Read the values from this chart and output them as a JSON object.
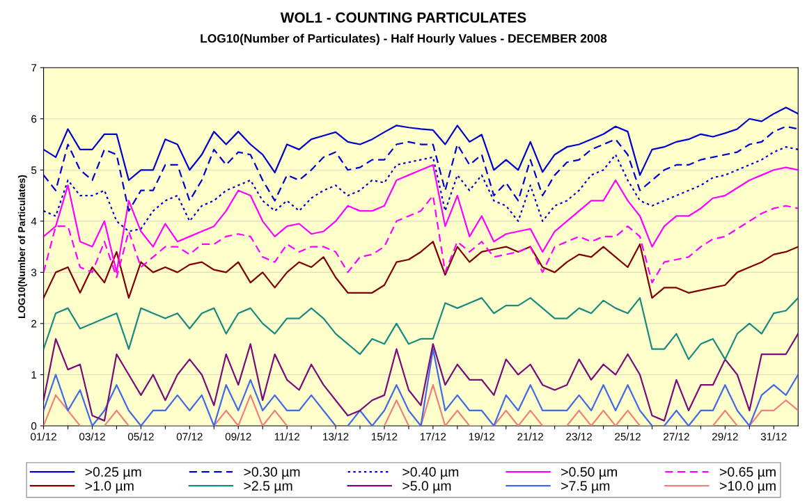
{
  "chart_data": {
    "type": "line",
    "title": "WOL1 - COUNTING PARTICULATES",
    "subtitle": "LOG10(Number of Particulates) - Half Hourly Values - DECEMBER 2008",
    "ylabel": "LOG10(Number of Particulates)",
    "x": [
      "2008-12-01T00:00",
      "2008-12-01T12:00",
      "2008-12-02T00:00",
      "2008-12-02T12:00",
      "2008-12-03T00:00",
      "2008-12-03T12:00",
      "2008-12-04T00:00",
      "2008-12-04T12:00",
      "2008-12-05T00:00",
      "2008-12-05T12:00",
      "2008-12-06T00:00",
      "2008-12-06T12:00",
      "2008-12-07T00:00",
      "2008-12-07T12:00",
      "2008-12-08T00:00",
      "2008-12-08T12:00",
      "2008-12-09T00:00",
      "2008-12-09T12:00",
      "2008-12-10T00:00",
      "2008-12-10T12:00",
      "2008-12-11T00:00",
      "2008-12-11T12:00",
      "2008-12-12T00:00",
      "2008-12-12T12:00",
      "2008-12-13T00:00",
      "2008-12-13T12:00",
      "2008-12-14T00:00",
      "2008-12-14T12:00",
      "2008-12-15T00:00",
      "2008-12-15T12:00",
      "2008-12-16T00:00",
      "2008-12-16T12:00",
      "2008-12-17T00:00",
      "2008-12-17T12:00",
      "2008-12-18T00:00",
      "2008-12-18T12:00",
      "2008-12-19T00:00",
      "2008-12-19T12:00",
      "2008-12-20T00:00",
      "2008-12-20T12:00",
      "2008-12-21T00:00",
      "2008-12-21T12:00",
      "2008-12-22T00:00",
      "2008-12-22T12:00",
      "2008-12-23T00:00",
      "2008-12-23T12:00",
      "2008-12-24T00:00",
      "2008-12-24T12:00",
      "2008-12-25T00:00",
      "2008-12-25T12:00",
      "2008-12-26T00:00",
      "2008-12-26T12:00",
      "2008-12-27T00:00",
      "2008-12-27T12:00",
      "2008-12-28T00:00",
      "2008-12-28T12:00",
      "2008-12-29T00:00",
      "2008-12-29T12:00",
      "2008-12-30T00:00",
      "2008-12-30T12:00",
      "2008-12-31T00:00",
      "2008-12-31T12:00",
      "2009-01-01T00:00"
    ],
    "xlim": [
      "2008-12-01",
      "2009-01-01"
    ],
    "xticks": [
      {
        "value": "2008-12-01",
        "label": "01/12"
      },
      {
        "value": "2008-12-02",
        "label": null
      },
      {
        "value": "2008-12-03",
        "label": "03/12"
      },
      {
        "value": "2008-12-04",
        "label": null
      },
      {
        "value": "2008-12-05",
        "label": "05/12"
      },
      {
        "value": "2008-12-06",
        "label": null
      },
      {
        "value": "2008-12-07",
        "label": "07/12"
      },
      {
        "value": "2008-12-08",
        "label": null
      },
      {
        "value": "2008-12-09",
        "label": "09/12"
      },
      {
        "value": "2008-12-10",
        "label": null
      },
      {
        "value": "2008-12-11",
        "label": "11/12"
      },
      {
        "value": "2008-12-12",
        "label": null
      },
      {
        "value": "2008-12-13",
        "label": "13/12"
      },
      {
        "value": "2008-12-14",
        "label": null
      },
      {
        "value": "2008-12-15",
        "label": "15/12"
      },
      {
        "value": "2008-12-16",
        "label": null
      },
      {
        "value": "2008-12-17",
        "label": "17/12"
      },
      {
        "value": "2008-12-18",
        "label": null
      },
      {
        "value": "2008-12-19",
        "label": "19/12"
      },
      {
        "value": "2008-12-20",
        "label": null
      },
      {
        "value": "2008-12-21",
        "label": "21/12"
      },
      {
        "value": "2008-12-22",
        "label": null
      },
      {
        "value": "2008-12-23",
        "label": "23/12"
      },
      {
        "value": "2008-12-24",
        "label": null
      },
      {
        "value": "2008-12-25",
        "label": "25/12"
      },
      {
        "value": "2008-12-26",
        "label": null
      },
      {
        "value": "2008-12-27",
        "label": "27/12"
      },
      {
        "value": "2008-12-28",
        "label": null
      },
      {
        "value": "2008-12-29",
        "label": "29/12"
      },
      {
        "value": "2008-12-30",
        "label": null
      },
      {
        "value": "2008-12-31",
        "label": "31/12"
      }
    ],
    "ylim": [
      0,
      7
    ],
    "yticks": [
      0,
      1,
      2,
      3,
      4,
      5,
      6,
      7
    ],
    "grid": "y",
    "legend": "bottom",
    "marker": "none",
    "series": [
      {
        "name": ">0.25 µm",
        "color": "#0000d0",
        "line_style": "solid",
        "values": [
          5.4,
          5.25,
          5.8,
          5.4,
          5.4,
          5.7,
          5.7,
          4.8,
          5.0,
          5.0,
          5.6,
          5.5,
          5.0,
          5.3,
          5.75,
          5.5,
          5.75,
          5.5,
          5.3,
          4.95,
          5.5,
          5.4,
          5.6,
          5.67,
          5.74,
          5.55,
          5.5,
          5.6,
          5.74,
          5.87,
          5.83,
          5.8,
          5.78,
          5.5,
          5.87,
          5.55,
          5.69,
          5.0,
          5.2,
          5.0,
          5.55,
          4.96,
          5.3,
          5.45,
          5.5,
          5.6,
          5.7,
          5.85,
          5.75,
          4.9,
          5.4,
          5.45,
          5.55,
          5.6,
          5.7,
          5.65,
          5.72,
          5.8,
          6.0,
          5.95,
          6.1,
          6.22,
          6.1
        ]
      },
      {
        "name": ">0.30 µm",
        "color": "#0000d0",
        "line_style": "dashed",
        "values": [
          4.9,
          4.6,
          5.5,
          5.0,
          4.8,
          5.4,
          5.3,
          4.2,
          4.6,
          4.6,
          5.1,
          5.1,
          4.4,
          4.8,
          5.4,
          5.1,
          5.35,
          5.3,
          4.8,
          4.4,
          4.9,
          4.8,
          5.0,
          5.25,
          5.35,
          5.0,
          5.05,
          5.2,
          5.2,
          5.5,
          5.55,
          5.5,
          5.5,
          4.6,
          5.5,
          5.1,
          5.3,
          4.5,
          4.75,
          4.4,
          5.2,
          4.5,
          4.9,
          5.15,
          5.2,
          5.4,
          5.5,
          5.6,
          5.3,
          4.6,
          4.8,
          5.0,
          5.1,
          5.1,
          5.2,
          5.25,
          5.3,
          5.35,
          5.5,
          5.55,
          5.75,
          5.85,
          5.8
        ]
      },
      {
        "name": ">0.40 µm",
        "color": "#0000d0",
        "line_style": "dotted",
        "values": [
          4.2,
          4.1,
          4.8,
          4.5,
          4.5,
          4.6,
          4.0,
          3.8,
          3.85,
          4.2,
          4.4,
          4.5,
          4.0,
          4.3,
          4.4,
          4.6,
          4.7,
          4.8,
          4.4,
          4.2,
          4.4,
          4.2,
          4.45,
          4.6,
          4.7,
          4.5,
          4.6,
          4.8,
          4.75,
          5.1,
          5.15,
          5.2,
          5.25,
          4.2,
          4.9,
          4.6,
          4.9,
          4.4,
          4.3,
          4.0,
          4.7,
          4.0,
          4.3,
          4.4,
          4.6,
          4.9,
          5.0,
          5.3,
          4.8,
          4.4,
          4.3,
          4.4,
          4.5,
          4.6,
          4.7,
          4.85,
          4.9,
          5.0,
          5.1,
          5.2,
          5.35,
          5.45,
          5.4
        ]
      },
      {
        "name": ">0.50 µm",
        "color": "#ff00ff",
        "line_style": "solid",
        "values": [
          3.7,
          3.9,
          4.7,
          3.6,
          3.5,
          4.0,
          3.0,
          4.4,
          3.8,
          3.5,
          3.95,
          3.6,
          3.7,
          3.8,
          3.9,
          4.2,
          4.6,
          4.5,
          4.0,
          3.7,
          3.9,
          3.95,
          3.75,
          3.8,
          4.0,
          4.3,
          4.2,
          4.2,
          4.3,
          4.8,
          4.9,
          5.0,
          5.1,
          3.9,
          4.5,
          3.7,
          4.1,
          3.6,
          3.75,
          3.8,
          3.85,
          3.4,
          3.8,
          4.0,
          4.2,
          4.4,
          4.4,
          4.8,
          4.4,
          4.1,
          3.5,
          3.9,
          4.1,
          4.1,
          4.25,
          4.45,
          4.5,
          4.65,
          4.8,
          4.9,
          5.0,
          5.05,
          5.0
        ]
      },
      {
        "name": ">0.65 µm",
        "color": "#ff00ff",
        "line_style": "dashed",
        "values": [
          3.0,
          3.9,
          3.9,
          3.1,
          3.0,
          3.6,
          2.9,
          3.8,
          3.1,
          3.3,
          3.5,
          3.5,
          3.35,
          3.55,
          3.55,
          3.7,
          3.75,
          3.7,
          3.3,
          3.2,
          3.55,
          3.4,
          3.5,
          3.5,
          3.4,
          3.0,
          3.3,
          3.35,
          3.5,
          4.0,
          4.1,
          4.2,
          4.5,
          3.0,
          3.6,
          3.4,
          3.6,
          3.3,
          3.35,
          3.4,
          3.5,
          3.0,
          3.5,
          3.6,
          3.7,
          3.6,
          3.7,
          3.7,
          3.9,
          3.7,
          2.8,
          3.2,
          3.25,
          3.3,
          3.5,
          3.65,
          3.7,
          3.85,
          4.0,
          4.15,
          4.25,
          4.3,
          4.25
        ]
      },
      {
        "name": ">1.0 µm",
        "color": "#800000",
        "line_style": "solid",
        "values": [
          2.5,
          3.0,
          3.1,
          2.6,
          3.1,
          2.8,
          3.4,
          2.5,
          3.2,
          3.0,
          3.1,
          3.0,
          3.15,
          3.2,
          3.05,
          3.0,
          3.2,
          2.8,
          3.0,
          2.7,
          3.0,
          3.2,
          3.1,
          3.3,
          2.9,
          2.6,
          2.6,
          2.6,
          2.75,
          3.2,
          3.25,
          3.4,
          3.6,
          2.95,
          3.5,
          3.2,
          3.4,
          3.45,
          3.5,
          3.4,
          3.5,
          3.1,
          3.0,
          3.2,
          3.35,
          3.3,
          3.5,
          3.3,
          3.1,
          3.55,
          2.5,
          2.7,
          2.7,
          2.6,
          2.65,
          2.7,
          2.75,
          3.0,
          3.1,
          3.2,
          3.35,
          3.4,
          3.5
        ]
      },
      {
        "name": ">2.5 µm",
        "color": "#1a8a80",
        "line_style": "solid",
        "values": [
          1.5,
          2.2,
          2.3,
          1.9,
          2.0,
          2.1,
          2.2,
          1.5,
          2.3,
          2.2,
          2.1,
          2.2,
          1.9,
          2.2,
          2.3,
          1.8,
          2.2,
          2.3,
          2.0,
          1.8,
          2.1,
          2.1,
          2.3,
          2.1,
          1.8,
          1.6,
          1.4,
          1.7,
          1.6,
          2.0,
          1.6,
          1.7,
          1.7,
          2.4,
          2.3,
          2.4,
          2.5,
          2.2,
          2.35,
          2.35,
          2.5,
          2.3,
          2.1,
          2.1,
          2.3,
          2.2,
          2.45,
          2.3,
          2.2,
          2.5,
          1.5,
          1.5,
          1.8,
          1.3,
          1.6,
          1.7,
          1.3,
          1.8,
          2.0,
          1.8,
          2.2,
          2.25,
          2.5
        ]
      },
      {
        "name": ">5.0 µm",
        "color": "#7b0a7b",
        "line_style": "solid",
        "values": [
          0.5,
          1.7,
          1.1,
          1.2,
          0.2,
          0.1,
          1.4,
          1.0,
          0.6,
          1.0,
          0.5,
          1.0,
          1.3,
          1.0,
          0.4,
          1.4,
          0.8,
          1.6,
          0.5,
          1.4,
          0.9,
          0.7,
          1.2,
          0.8,
          0.5,
          0.2,
          0.3,
          0.5,
          0.6,
          1.5,
          0.7,
          0.4,
          1.6,
          0.8,
          1.2,
          0.9,
          0.9,
          0.6,
          1.3,
          1.0,
          1.2,
          0.8,
          0.7,
          0.8,
          1.3,
          0.9,
          1.2,
          1.0,
          1.4,
          1.0,
          0.2,
          0.1,
          0.9,
          0.3,
          0.8,
          0.8,
          1.3,
          1.0,
          0.3,
          1.4,
          1.4,
          1.4,
          1.8
        ]
      },
      {
        "name": ">7.5 µm",
        "color": "#4169e8",
        "line_style": "solid",
        "values": [
          0.3,
          1.0,
          0.3,
          0.7,
          0.0,
          0.3,
          0.8,
          0.3,
          0.0,
          0.3,
          0.3,
          0.6,
          0.3,
          0.6,
          0.0,
          0.8,
          0.3,
          0.9,
          0.3,
          0.6,
          0.3,
          0.3,
          0.6,
          0.3,
          0.0,
          0.0,
          0.3,
          0.0,
          0.3,
          0.8,
          0.3,
          0.0,
          1.5,
          0.3,
          0.6,
          0.3,
          0.3,
          0.0,
          0.6,
          0.3,
          0.8,
          0.3,
          0.3,
          0.3,
          0.6,
          0.3,
          0.8,
          0.3,
          0.8,
          0.3,
          0.0,
          0.0,
          0.3,
          0.0,
          0.3,
          0.3,
          0.8,
          0.3,
          0.0,
          0.6,
          0.8,
          0.6,
          1.0
        ]
      },
      {
        "name": ">10.0 µm",
        "color": "#f08080",
        "line_style": "solid",
        "values": [
          0.0,
          0.6,
          0.3,
          0.0,
          0.0,
          0.0,
          0.3,
          0.0,
          0.0,
          0.0,
          0.0,
          0.0,
          0.0,
          0.0,
          0.0,
          0.3,
          0.0,
          0.6,
          0.0,
          0.3,
          0.0,
          0.0,
          0.0,
          0.0,
          0.0,
          0.0,
          0.0,
          0.0,
          0.0,
          0.5,
          0.0,
          0.0,
          0.8,
          0.0,
          0.3,
          0.0,
          0.0,
          0.0,
          0.3,
          0.0,
          0.3,
          0.0,
          0.0,
          0.0,
          0.3,
          0.0,
          0.3,
          0.0,
          0.3,
          0.0,
          0.0,
          0.0,
          0.0,
          0.0,
          0.0,
          0.0,
          0.3,
          0.0,
          0.0,
          0.3,
          0.3,
          0.5,
          0.3
        ]
      }
    ]
  }
}
